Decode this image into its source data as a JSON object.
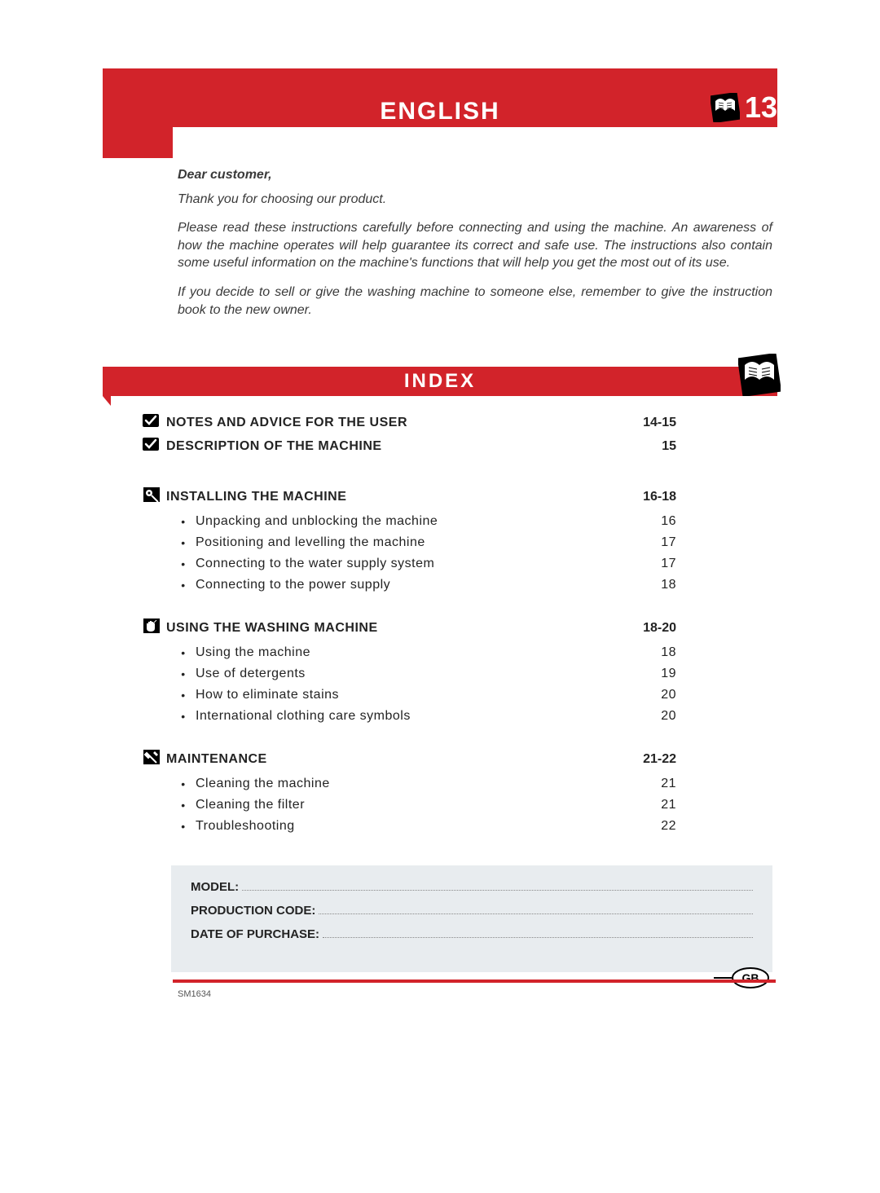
{
  "header": {
    "language_title": "ENGLISH",
    "page_number": "13"
  },
  "intro": {
    "salutation": "Dear customer,",
    "p1": "Thank you for choosing our product.",
    "p2": "Please read these instructions carefully before connecting and using the machine. An awareness of how the machine operates will help guarantee its correct and safe use. The instructions also contain some useful information on the machine's functions that will help you get the most out of its use.",
    "p3": "If you decide to sell or give the washing machine to someone else, remember to give the instruction book to the new owner."
  },
  "index": {
    "title": "INDEX",
    "sections": [
      {
        "icon": "check",
        "title": "NOTES AND ADVICE FOR THE USER",
        "pages": "14-15",
        "items": []
      },
      {
        "icon": "check",
        "title": "DESCRIPTION OF THE MACHINE",
        "pages": "15",
        "items": []
      },
      {
        "icon": "pin",
        "title": "INSTALLING THE MACHINE",
        "pages": "16-18",
        "items": [
          {
            "label": "Unpacking and unblocking the machine",
            "page": "16"
          },
          {
            "label": "Positioning and levelling the machine",
            "page": "17"
          },
          {
            "label": "Connecting to the water supply system",
            "page": "17"
          },
          {
            "label": "Connecting to the power supply",
            "page": "18"
          }
        ]
      },
      {
        "icon": "hand",
        "title": "USING THE WASHING MACHINE",
        "pages": "18-20",
        "items": [
          {
            "label": "Using the machine",
            "page": "18"
          },
          {
            "label": "Use of detergents",
            "page": "19"
          },
          {
            "label": "How to eliminate stains",
            "page": "20"
          },
          {
            "label": "International clothing care symbols",
            "page": "20"
          }
        ]
      },
      {
        "icon": "tool",
        "title": "MAINTENANCE",
        "pages": "21-22",
        "items": [
          {
            "label": "Cleaning the machine",
            "page": "21"
          },
          {
            "label": "Cleaning the filter",
            "page": "21"
          },
          {
            "label": "Troubleshooting",
            "page": "22"
          }
        ]
      }
    ]
  },
  "info_box": {
    "fields": [
      {
        "label": "MODEL:"
      },
      {
        "label": "PRODUCTION CODE:"
      },
      {
        "label": "DATE OF PURCHASE:"
      }
    ]
  },
  "country_badge": "GB",
  "doc_code": "SM1634",
  "colors": {
    "brand_red": "#d2232a",
    "info_bg": "#e8ecef",
    "text": "#232323"
  }
}
